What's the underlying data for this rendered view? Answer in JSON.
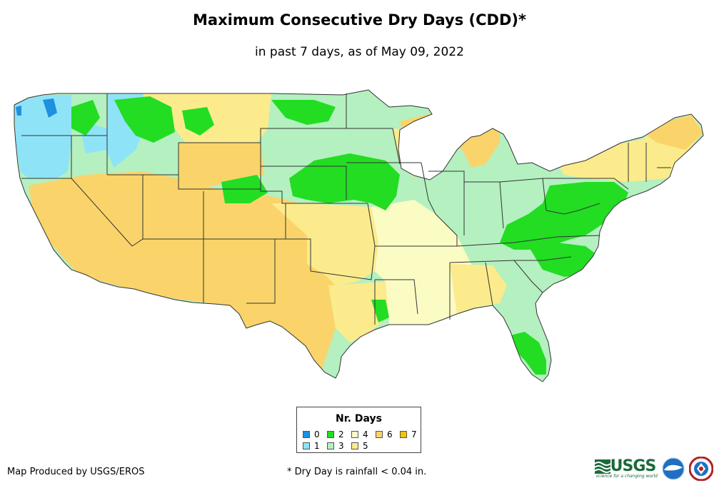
{
  "title": "Maximum Consecutive Dry Days (CDD)*",
  "subtitle": "in past 7 days, as of May 09, 2022",
  "legend": {
    "title": "Nr. Days",
    "items": [
      {
        "label": "0",
        "color": "#1e90e0"
      },
      {
        "label": "1",
        "color": "#8fe3f7"
      },
      {
        "label": "2",
        "color": "#22dd22"
      },
      {
        "label": "3",
        "color": "#b4f0c0"
      },
      {
        "label": "4",
        "color": "#fbfbc4"
      },
      {
        "label": "5",
        "color": "#fbeb8c"
      },
      {
        "label": "6",
        "color": "#fad46a"
      },
      {
        "label": "7",
        "color": "#f7c300"
      }
    ]
  },
  "footer": {
    "credit": "Map Produced by USGS/EROS",
    "note": "* Dry Day is rainfall < 0.04 in."
  },
  "logos": {
    "usgs": "USGS",
    "usgs_tagline": "science for a changing world"
  },
  "colors": {
    "border": "#333333"
  }
}
